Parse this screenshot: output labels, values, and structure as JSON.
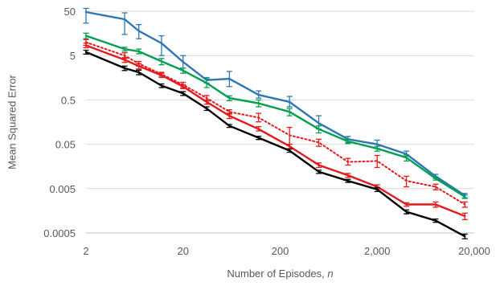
{
  "chart_data": {
    "type": "line",
    "xlabel_main": "Number of Episodes, ",
    "xlabel_var": "n",
    "ylabel": "Mean Squared Error",
    "x_scale": "log",
    "y_scale": "log",
    "xlim": [
      2,
      20000
    ],
    "ylim": [
      0.0005,
      50
    ],
    "x_ticks": [
      2,
      20,
      200,
      2000,
      20000
    ],
    "x_tick_labels": [
      "2",
      "20",
      "200",
      "2,000",
      "20,000"
    ],
    "y_ticks": [
      0.0005,
      0.005,
      0.05,
      0.5,
      5,
      50
    ],
    "y_tick_labels": [
      "0.0005",
      "0.005",
      "0.05",
      "0.5",
      "5",
      "50"
    ],
    "grid": "horizontal",
    "legend": "none",
    "series": [
      {
        "color": "#2E75B6",
        "style": "solid",
        "points": [
          {
            "x": 2,
            "y": 48,
            "lo": 27,
            "hi": 58
          },
          {
            "x": 5,
            "y": 33,
            "lo": 15,
            "hi": 46
          },
          {
            "x": 7,
            "y": 18,
            "lo": 12,
            "hi": 25
          },
          {
            "x": 12,
            "y": 9.5,
            "lo": 5,
            "hi": 14
          },
          {
            "x": 20,
            "y": 3.6,
            "lo": 2.6,
            "hi": 5
          },
          {
            "x": 35,
            "y": 1.4,
            "lo": 1.2,
            "hi": 1.6
          },
          {
            "x": 60,
            "y": 1.5,
            "lo": 1.0,
            "hi": 2.2
          },
          {
            "x": 120,
            "y": 0.65,
            "lo": 0.55,
            "hi": 0.8
          },
          {
            "x": 250,
            "y": 0.45,
            "lo": 0.35,
            "hi": 0.6
          },
          {
            "x": 500,
            "y": 0.15,
            "lo": 0.11,
            "hi": 0.22
          },
          {
            "x": 1000,
            "y": 0.065,
            "lo": 0.055,
            "hi": 0.075
          },
          {
            "x": 2000,
            "y": 0.05,
            "lo": 0.04,
            "hi": 0.062
          },
          {
            "x": 4000,
            "y": 0.03,
            "lo": 0.027,
            "hi": 0.035
          },
          {
            "x": 8000,
            "y": 0.0095,
            "lo": 0.0085,
            "hi": 0.0105
          },
          {
            "x": 16000,
            "y": 0.0035,
            "lo": 0.0031,
            "hi": 0.0039
          }
        ]
      },
      {
        "color": "#00A050",
        "style": "solid",
        "points": [
          {
            "x": 2,
            "y": 14,
            "lo": 12,
            "hi": 16
          },
          {
            "x": 5,
            "y": 7.0,
            "lo": 6.3,
            "hi": 7.7
          },
          {
            "x": 7,
            "y": 6.2,
            "lo": 5.5,
            "hi": 7.0
          },
          {
            "x": 12,
            "y": 3.7,
            "lo": 3.1,
            "hi": 4.3
          },
          {
            "x": 20,
            "y": 2.3,
            "lo": 2.0,
            "hi": 2.6
          },
          {
            "x": 35,
            "y": 1.2,
            "lo": 0.95,
            "hi": 1.5
          },
          {
            "x": 60,
            "y": 0.55,
            "lo": 0.48,
            "hi": 0.62
          },
          {
            "x": 120,
            "y": 0.42,
            "lo": 0.35,
            "hi": 0.5
          },
          {
            "x": 250,
            "y": 0.27,
            "lo": 0.22,
            "hi": 0.32
          },
          {
            "x": 500,
            "y": 0.11,
            "lo": 0.09,
            "hi": 0.13
          },
          {
            "x": 1000,
            "y": 0.058,
            "lo": 0.052,
            "hi": 0.064
          },
          {
            "x": 2000,
            "y": 0.04,
            "lo": 0.035,
            "hi": 0.045
          },
          {
            "x": 4000,
            "y": 0.025,
            "lo": 0.021,
            "hi": 0.029
          },
          {
            "x": 8000,
            "y": 0.0085,
            "lo": 0.0078,
            "hi": 0.0092
          },
          {
            "x": 16000,
            "y": 0.0033,
            "lo": 0.003,
            "hi": 0.0036
          }
        ]
      },
      {
        "color": "#E41A1C",
        "style": "dotted",
        "points": [
          {
            "x": 2,
            "y": 10,
            "lo": 8.5,
            "hi": 11.5
          },
          {
            "x": 5,
            "y": 5.0,
            "lo": 4.3,
            "hi": 5.8
          },
          {
            "x": 7,
            "y": 3.3,
            "lo": 2.9,
            "hi": 3.7
          },
          {
            "x": 12,
            "y": 1.9,
            "lo": 1.7,
            "hi": 2.1
          },
          {
            "x": 20,
            "y": 1.1,
            "lo": 0.95,
            "hi": 1.25
          },
          {
            "x": 35,
            "y": 0.55,
            "lo": 0.47,
            "hi": 0.63
          },
          {
            "x": 60,
            "y": 0.27,
            "lo": 0.24,
            "hi": 0.3
          },
          {
            "x": 120,
            "y": 0.2,
            "lo": 0.16,
            "hi": 0.25
          },
          {
            "x": 250,
            "y": 0.08,
            "lo": 0.05,
            "hi": 0.12
          },
          {
            "x": 500,
            "y": 0.055,
            "lo": 0.045,
            "hi": 0.065
          },
          {
            "x": 1000,
            "y": 0.02,
            "lo": 0.017,
            "hi": 0.024
          },
          {
            "x": 2000,
            "y": 0.021,
            "lo": 0.015,
            "hi": 0.028
          },
          {
            "x": 4000,
            "y": 0.0075,
            "lo": 0.0055,
            "hi": 0.0095
          },
          {
            "x": 8000,
            "y": 0.0055,
            "lo": 0.0047,
            "hi": 0.0063
          },
          {
            "x": 16000,
            "y": 0.0022,
            "lo": 0.0019,
            "hi": 0.0025
          }
        ]
      },
      {
        "color": "#E41A1C",
        "style": "solid",
        "points": [
          {
            "x": 2,
            "y": 8.5,
            "lo": 7.5,
            "hi": 9.5
          },
          {
            "x": 5,
            "y": 4.0,
            "lo": 3.5,
            "hi": 4.5
          },
          {
            "x": 7,
            "y": 2.9,
            "lo": 2.5,
            "hi": 3.3
          },
          {
            "x": 12,
            "y": 1.8,
            "lo": 1.6,
            "hi": 2.0
          },
          {
            "x": 20,
            "y": 1.0,
            "lo": 0.9,
            "hi": 1.1
          },
          {
            "x": 35,
            "y": 0.45,
            "lo": 0.4,
            "hi": 0.5
          },
          {
            "x": 60,
            "y": 0.22,
            "lo": 0.19,
            "hi": 0.25
          },
          {
            "x": 120,
            "y": 0.11,
            "lo": 0.1,
            "hi": 0.125
          },
          {
            "x": 250,
            "y": 0.045,
            "lo": 0.04,
            "hi": 0.05
          },
          {
            "x": 500,
            "y": 0.017,
            "lo": 0.015,
            "hi": 0.019
          },
          {
            "x": 1000,
            "y": 0.01,
            "lo": 0.009,
            "hi": 0.011
          },
          {
            "x": 2000,
            "y": 0.0055,
            "lo": 0.0049,
            "hi": 0.0061
          },
          {
            "x": 4000,
            "y": 0.0022,
            "lo": 0.002,
            "hi": 0.0024
          },
          {
            "x": 8000,
            "y": 0.0022,
            "lo": 0.0019,
            "hi": 0.0025
          },
          {
            "x": 16000,
            "y": 0.0012,
            "lo": 0.001,
            "hi": 0.0014
          }
        ]
      },
      {
        "color": "#000000",
        "style": "solid",
        "points": [
          {
            "x": 2,
            "y": 6.0,
            "lo": 5.4,
            "hi": 6.6
          },
          {
            "x": 5,
            "y": 2.6,
            "lo": 2.3,
            "hi": 2.9
          },
          {
            "x": 7,
            "y": 2.1,
            "lo": 1.85,
            "hi": 2.35
          },
          {
            "x": 12,
            "y": 1.05,
            "lo": 0.95,
            "hi": 1.15
          },
          {
            "x": 20,
            "y": 0.7,
            "lo": 0.63,
            "hi": 0.77
          },
          {
            "x": 35,
            "y": 0.32,
            "lo": 0.29,
            "hi": 0.35
          },
          {
            "x": 60,
            "y": 0.13,
            "lo": 0.12,
            "hi": 0.14
          },
          {
            "x": 120,
            "y": 0.07,
            "lo": 0.064,
            "hi": 0.076
          },
          {
            "x": 250,
            "y": 0.036,
            "lo": 0.033,
            "hi": 0.039
          },
          {
            "x": 500,
            "y": 0.012,
            "lo": 0.011,
            "hi": 0.013
          },
          {
            "x": 1000,
            "y": 0.0075,
            "lo": 0.0069,
            "hi": 0.0081
          },
          {
            "x": 2000,
            "y": 0.0048,
            "lo": 0.0043,
            "hi": 0.0053
          },
          {
            "x": 4000,
            "y": 0.0015,
            "lo": 0.00135,
            "hi": 0.00165
          },
          {
            "x": 8000,
            "y": 0.00095,
            "lo": 0.00087,
            "hi": 0.00103
          },
          {
            "x": 16000,
            "y": 0.00042,
            "lo": 0.00037,
            "hi": 0.00047
          }
        ]
      }
    ]
  },
  "colors": {
    "gridline": "#d9d9d9",
    "axis": "#bfbfbf",
    "text": "#595959"
  }
}
